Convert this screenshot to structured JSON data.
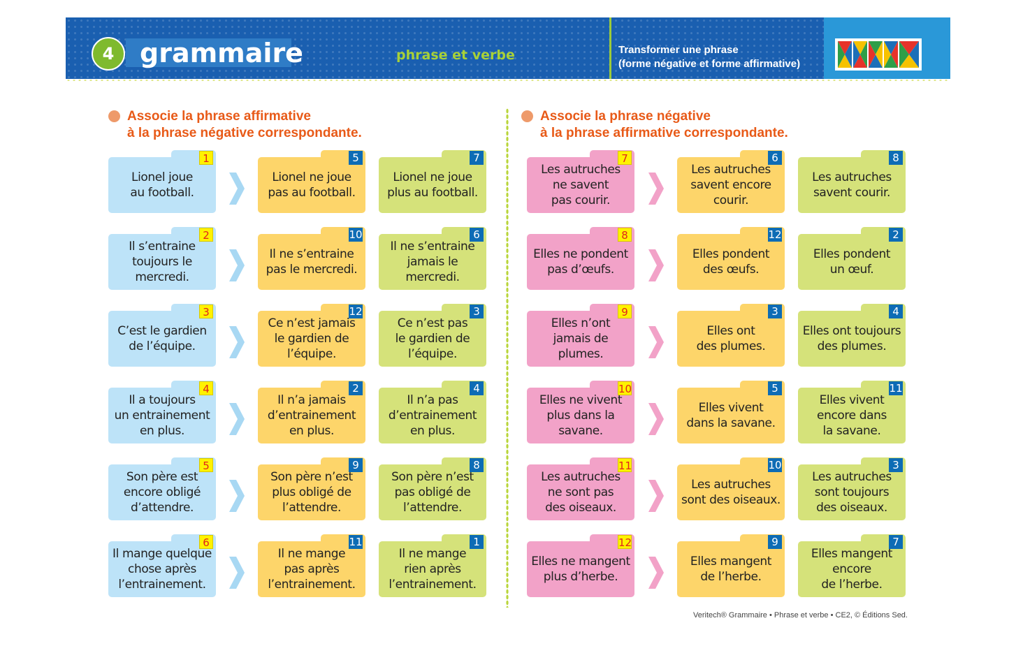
{
  "header": {
    "number": "4",
    "title": "grammaire",
    "subject": "phrase et verbe",
    "objective_line1": "Transformer une phrase",
    "objective_line2": "(forme négative et forme affirmative)"
  },
  "instructions": {
    "left": [
      "Associe la phrase affirmative",
      "à la phrase négative correspondante."
    ],
    "right": [
      "Associe la phrase négative",
      "à la phrase affirmative correspondante."
    ]
  },
  "colors": {
    "header_blue": "#1a5fb0",
    "instruction_orange": "#e85a18",
    "card_blue": "#bde3f8",
    "card_orange": "#fdd56a",
    "card_green": "#d5e27a",
    "card_pink": "#f2a2c8"
  },
  "left_rows": [
    {
      "cards": [
        {
          "num": "1",
          "text": "Lionel joue\nau football."
        },
        {
          "num": "5",
          "text": "Lionel ne joue\npas au football."
        },
        {
          "num": "7",
          "text": "Lionel ne joue\nplus au football."
        }
      ]
    },
    {
      "cards": [
        {
          "num": "2",
          "text": "Il s’entraine\ntoujours le\nmercredi."
        },
        {
          "num": "10",
          "text": "Il ne s’entraine\npas le mercredi."
        },
        {
          "num": "6",
          "text": "Il ne s’entraine\njamais le\nmercredi."
        }
      ]
    },
    {
      "cards": [
        {
          "num": "3",
          "text": "C’est le gardien\nde l’équipe."
        },
        {
          "num": "12",
          "text": "Ce n’est jamais\nle gardien de\nl’équipe."
        },
        {
          "num": "3",
          "text": "Ce n’est pas\nle gardien de\nl’équipe."
        }
      ]
    },
    {
      "cards": [
        {
          "num": "4",
          "text": "Il a toujours\nun entrainement\nen plus."
        },
        {
          "num": "2",
          "text": "Il n’a jamais\nd’entrainement\nen plus."
        },
        {
          "num": "4",
          "text": "Il n’a pas\nd’entrainement\nen plus."
        }
      ]
    },
    {
      "cards": [
        {
          "num": "5",
          "text": "Son père est\nencore obligé\nd’attendre."
        },
        {
          "num": "9",
          "text": "Son père n’est\nplus obligé de\nl’attendre."
        },
        {
          "num": "8",
          "text": "Son père n’est\npas obligé de\nl’attendre."
        }
      ]
    },
    {
      "cards": [
        {
          "num": "6",
          "text": "Il mange quelque\nchose après\nl’entrainement."
        },
        {
          "num": "11",
          "text": "Il ne mange\npas après\nl’entrainement."
        },
        {
          "num": "1",
          "text": "Il ne mange\nrien après\nl’entrainement."
        }
      ]
    }
  ],
  "right_rows": [
    {
      "cards": [
        {
          "num": "7",
          "text": "Les autruches\nne savent\npas courir."
        },
        {
          "num": "6",
          "text": "Les autruches\nsavent encore\ncourir."
        },
        {
          "num": "8",
          "text": "Les autruches\nsavent courir."
        }
      ]
    },
    {
      "cards": [
        {
          "num": "8",
          "text": "Elles ne pondent\npas d’œufs."
        },
        {
          "num": "12",
          "text": "Elles pondent\ndes œufs."
        },
        {
          "num": "2",
          "text": "Elles pondent\nun œuf."
        }
      ]
    },
    {
      "cards": [
        {
          "num": "9",
          "text": "Elles n’ont\njamais de\nplumes."
        },
        {
          "num": "3",
          "text": "Elles ont\ndes plumes."
        },
        {
          "num": "4",
          "text": "Elles ont toujours\ndes plumes."
        }
      ]
    },
    {
      "cards": [
        {
          "num": "10",
          "text": "Elles ne vivent\nplus dans la\nsavane."
        },
        {
          "num": "5",
          "text": "Elles vivent\ndans la savane."
        },
        {
          "num": "11",
          "text": "Elles vivent\nencore dans\nla savane."
        }
      ]
    },
    {
      "cards": [
        {
          "num": "11",
          "text": "Les autruches\nne sont pas\ndes oiseaux."
        },
        {
          "num": "10",
          "text": "Les autruches\nsont des oiseaux."
        },
        {
          "num": "3",
          "text": "Les autruches\nsont toujours\ndes oiseaux."
        }
      ]
    },
    {
      "cards": [
        {
          "num": "12",
          "text": "Elles ne mangent\nplus d’herbe."
        },
        {
          "num": "9",
          "text": "Elles mangent\nde l’herbe."
        },
        {
          "num": "7",
          "text": "Elles mangent\nencore\nde l’herbe."
        }
      ]
    }
  ],
  "footer": "Veritech® Grammaire • Phrase et verbe • CE2, © Éditions Sed."
}
